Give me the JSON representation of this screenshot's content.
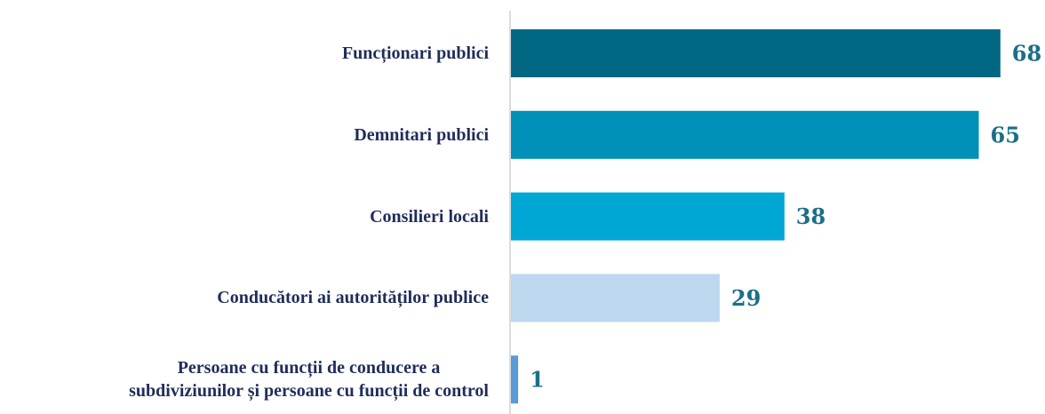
{
  "chart_data": {
    "type": "bar",
    "orientation": "horizontal",
    "categories": [
      "Funcționari publici",
      "Demnitari publici",
      "Consilieri locali",
      "Conducători ai autorităților publice",
      "Persoane cu funcții de conducere a\nsubdiviziunilor și persoane cu funcții de control"
    ],
    "values": [
      68,
      65,
      38,
      29,
      1
    ],
    "colors": [
      "#006682",
      "#0090b8",
      "#00a6d4",
      "#bdd7ee",
      "#5b9bd5"
    ]
  }
}
